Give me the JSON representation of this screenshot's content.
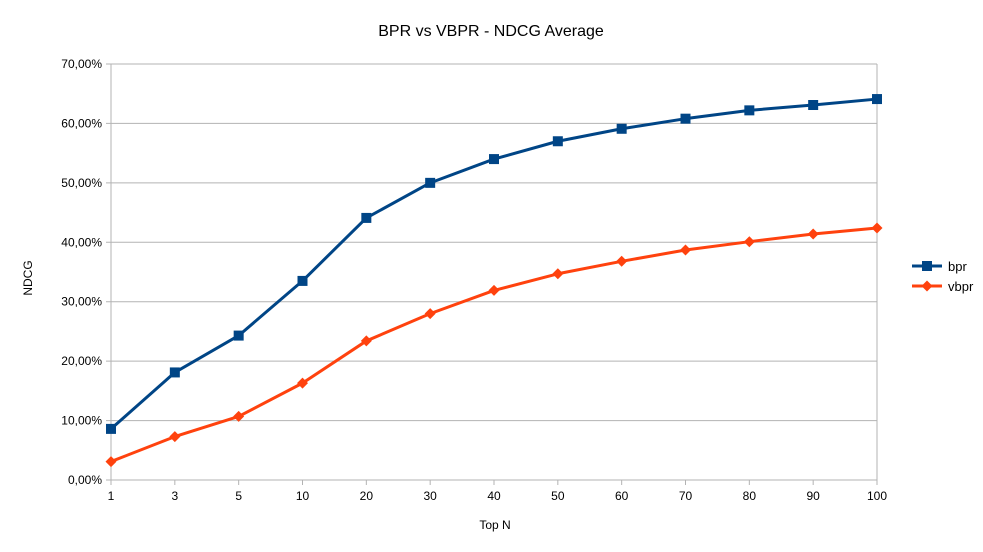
{
  "chart_data": {
    "type": "line",
    "title": "BPR vs VBPR - NDCG Average",
    "xlabel": "Top N",
    "ylabel": "NDCG",
    "categories": [
      "1",
      "3",
      "5",
      "10",
      "20",
      "30",
      "40",
      "50",
      "60",
      "70",
      "80",
      "90",
      "100"
    ],
    "y_ticks": [
      "0,00%",
      "10,00%",
      "20,00%",
      "30,00%",
      "40,00%",
      "50,00%",
      "60,00%",
      "70,00%"
    ],
    "ylim": [
      0,
      70
    ],
    "grid": true,
    "legend_position": "right",
    "series": [
      {
        "name": "bpr",
        "color": "#004586",
        "marker": "square",
        "values": [
          8.6,
          18.1,
          24.3,
          33.5,
          44.1,
          50.0,
          54.0,
          57.0,
          59.1,
          60.8,
          62.2,
          63.1,
          64.1
        ]
      },
      {
        "name": "vbpr",
        "color": "#ff420e",
        "marker": "diamond",
        "values": [
          3.1,
          7.3,
          10.7,
          16.3,
          23.4,
          28.0,
          31.9,
          34.7,
          36.8,
          38.7,
          40.1,
          41.4,
          42.4
        ]
      }
    ]
  }
}
